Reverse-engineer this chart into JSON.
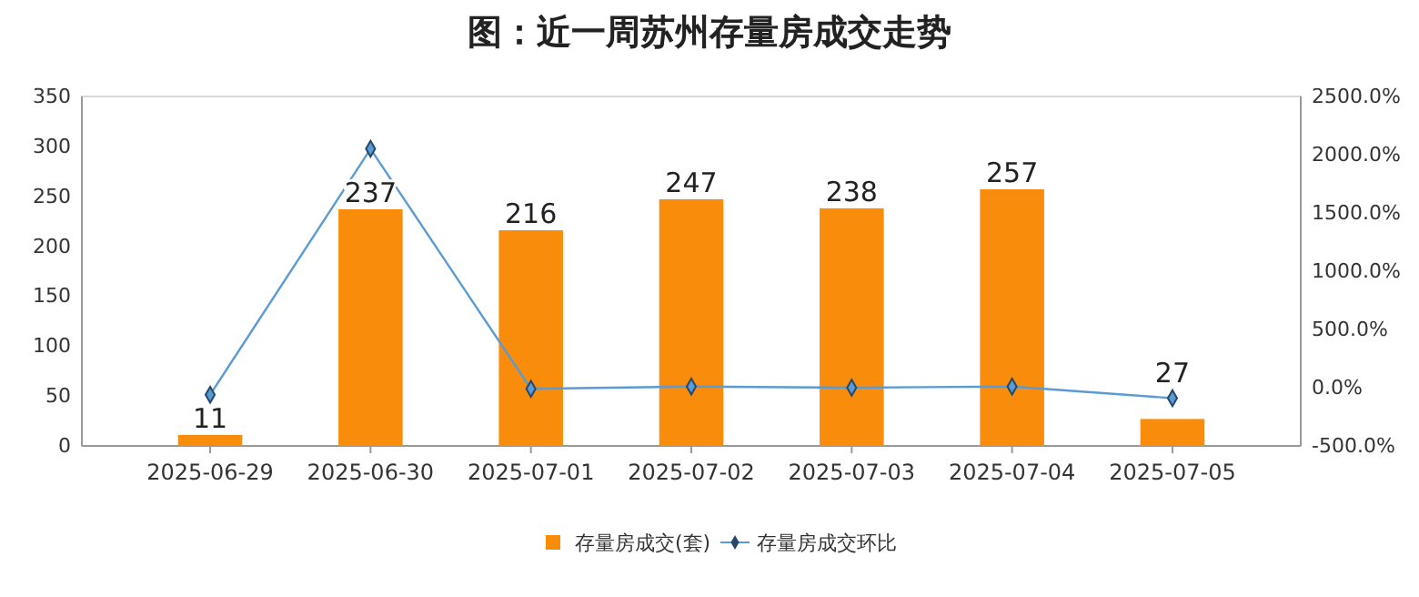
{
  "chart_data": {
    "type": "bar",
    "title": "图：近一周苏州存量房成交走势",
    "categories": [
      "2025-06-29",
      "2025-06-30",
      "2025-07-01",
      "2025-07-02",
      "2025-07-03",
      "2025-07-04",
      "2025-07-05"
    ],
    "series": [
      {
        "name": "存量房成交(套)",
        "color": "#f98c0a",
        "values": [
          11,
          237,
          216,
          247,
          238,
          257,
          27
        ],
        "value_labels": [
          "11",
          "237",
          "216",
          "247",
          "238",
          "257",
          "27"
        ]
      },
      {
        "name": "存量房成交环比",
        "type": "line",
        "axis": "y2",
        "color": "#5b9bd5",
        "marker": "diamond",
        "values": [
          -60,
          2050,
          -10,
          10,
          0,
          10,
          -90
        ]
      }
    ],
    "ylim": [
      0,
      350
    ],
    "yticks": [
      0,
      50,
      100,
      150,
      200,
      250,
      300,
      350
    ],
    "y2lim": [
      -500,
      2500
    ],
    "y2ticks": [
      {
        "value": -500,
        "label": "-500.0%"
      },
      {
        "value": 0,
        "label": "0.0%"
      },
      {
        "value": 500,
        "label": "500.0%"
      },
      {
        "value": 1000,
        "label": "1000.0%"
      },
      {
        "value": 1500,
        "label": "1500.0%"
      },
      {
        "value": 2000,
        "label": "2000.0%"
      },
      {
        "value": 2500,
        "label": "2500.0%"
      }
    ],
    "grid": false,
    "legend": "bottom"
  }
}
